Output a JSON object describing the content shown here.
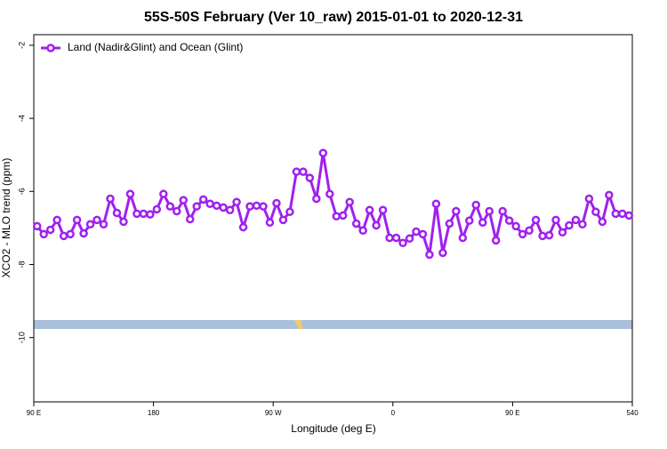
{
  "chart_data": {
    "type": "line",
    "title": "55S-50S February (Ver 10_raw)   2015-01-01 to 2020-12-31",
    "x_label": "Longitude (deg E)",
    "y_label": "XCO2 - MLO trend (ppm)",
    "x": [
      92.5,
      97.5,
      102.5,
      107.5,
      112.5,
      117.5,
      122.5,
      127.5,
      132.5,
      137.5,
      142.5,
      147.5,
      152.5,
      157.5,
      162.5,
      167.5,
      172.5,
      177.5,
      182.5,
      187.5,
      192.5,
      197.5,
      202.5,
      207.5,
      212.5,
      217.5,
      222.5,
      227.5,
      232.5,
      237.5,
      242.5,
      247.5,
      252.5,
      257.5,
      262.5,
      267.5,
      272.5,
      277.5,
      282.5,
      287.5,
      292.5,
      297.5,
      302.5,
      307.5,
      312.5,
      317.5,
      322.5,
      327.5,
      332.5,
      337.5,
      342.5,
      347.5,
      352.5,
      357.5,
      362.5,
      367.5,
      372.5,
      377.5,
      382.5,
      387.5,
      392.5,
      397.5,
      402.5,
      407.5,
      412.5,
      417.5,
      422.5,
      427.5,
      432.5,
      437.5,
      442.5,
      447.5,
      452.5,
      457.5,
      462.5,
      467.5,
      472.5,
      477.5,
      482.5,
      487.5,
      492.5,
      497.5,
      502.5,
      507.5,
      512.5,
      517.5,
      522.5,
      527.5,
      532.5,
      537.5
    ],
    "series": [
      {
        "name": "Land (Nadir&Glint) and Ocean (Glint)",
        "color": "#a020f0",
        "values": [
          -6.95,
          -7.17,
          -7.05,
          -6.78,
          -7.22,
          -7.17,
          -6.78,
          -7.15,
          -6.9,
          -6.78,
          -6.9,
          -6.2,
          -6.59,
          -6.83,
          -6.07,
          -6.61,
          -6.61,
          -6.63,
          -6.49,
          -6.07,
          -6.41,
          -6.54,
          -6.24,
          -6.76,
          -6.41,
          -6.22,
          -6.34,
          -6.39,
          -6.44,
          -6.51,
          -6.29,
          -6.98,
          -6.41,
          -6.39,
          -6.41,
          -6.85,
          -6.32,
          -6.78,
          -6.56,
          -5.46,
          -5.46,
          -5.63,
          -6.2,
          -4.95,
          -6.07,
          -6.68,
          -6.66,
          -6.29,
          -6.88,
          -7.07,
          -6.51,
          -6.93,
          -6.51,
          -7.27,
          -7.27,
          -7.41,
          -7.29,
          -7.1,
          -7.17,
          -7.73,
          -6.34,
          -7.68,
          -6.88,
          -6.54,
          -7.27,
          -6.8,
          -6.37,
          -6.85,
          -6.54,
          -7.34,
          -6.54,
          -6.8,
          -6.95,
          -7.17,
          -7.07,
          -6.78,
          -7.22,
          -7.2,
          -6.78,
          -7.12,
          -6.93,
          -6.78,
          -6.9,
          -6.2,
          -6.56,
          -6.83,
          -6.1,
          -6.61,
          -6.61,
          -6.66
        ]
      }
    ],
    "xlim": [
      90,
      540
    ],
    "xticks": [
      {
        "value": 90,
        "label": "90 E"
      },
      180,
      {
        "value": 270,
        "label": "90 W"
      },
      {
        "value": 360,
        "label": "0"
      },
      {
        "value": 450,
        "label": "90 E"
      },
      540
    ],
    "ylim": [
      -11.76,
      -1.71
    ],
    "yticks": [
      -2,
      -4,
      -6,
      -8,
      -10
    ],
    "legend": "top-left"
  }
}
